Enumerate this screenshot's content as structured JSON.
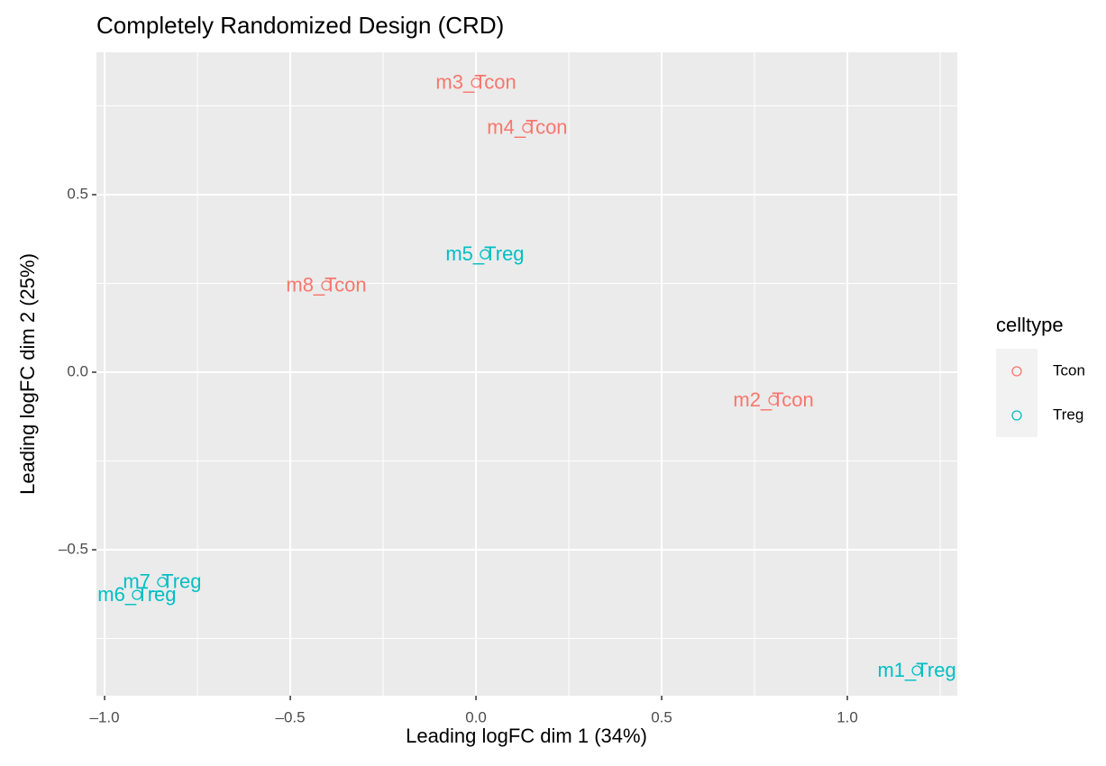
{
  "chart_data": {
    "type": "scatter",
    "title": "Completely Randomized Design (CRD)",
    "x_label": "Leading logFC dim 1 (34%)",
    "y_label": "Leading logFC dim 2 (25%)",
    "legend_title": "celltype",
    "legend_position": "right",
    "grid": true,
    "xlim": [
      -1.022,
      1.296
    ],
    "ylim": [
      -0.911,
      0.901
    ],
    "xticks": [
      {
        "value": -1.0,
        "label": "–1.0"
      },
      {
        "value": -0.5,
        "label": "–0.5"
      },
      {
        "value": 0.0,
        "label": "0.0"
      },
      {
        "value": 0.5,
        "label": "0.5"
      },
      {
        "value": 1.0,
        "label": "1.0"
      }
    ],
    "yticks": [
      {
        "value": -0.5,
        "label": "–0.5"
      },
      {
        "value": 0.0,
        "label": "0.0"
      },
      {
        "value": 0.5,
        "label": "0.5"
      }
    ],
    "series": [
      {
        "name": "Tcon",
        "color": "#F8766D",
        "labels": [
          "m2_Tcon",
          "m3_Tcon",
          "m4_Tcon",
          "m8_Tcon"
        ],
        "x": [
          0.801,
          0.0,
          0.138,
          -0.403
        ],
        "values": [
          -0.079,
          0.815,
          0.688,
          0.244
        ]
      },
      {
        "name": "Treg",
        "color": "#00BFC4",
        "labels": [
          "m1_Treg",
          "m5_Treg",
          "m6_Treg",
          "m7_Treg"
        ],
        "x": [
          1.187,
          0.024,
          -0.913,
          -0.845
        ],
        "values": [
          -0.84,
          0.332,
          -0.627,
          -0.591
        ]
      }
    ]
  }
}
